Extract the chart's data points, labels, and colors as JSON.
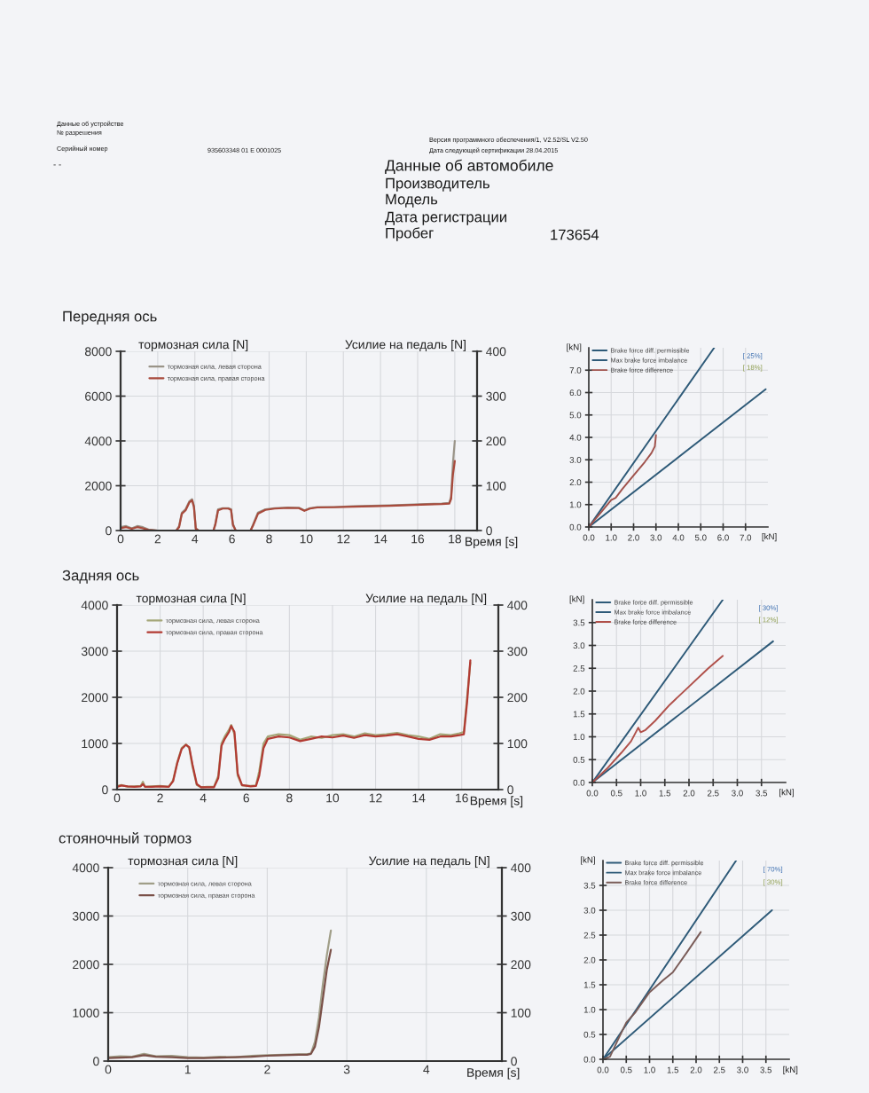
{
  "chart_data": [
    {
      "type": "other",
      "annotations": [
        "Данные об устройстве",
        "№ разрешения",
        "Серийный номер",
        "935603348 01 E 0001025",
        "Версия программного обеспечения/1, V2.52/SL V2.50",
        "Дата следующей сертификации 28.04.2015",
        "- -",
        "Данные об автомобиле",
        "Производитель",
        "Модель",
        "Дата регистрации",
        "Пробег",
        "173654"
      ]
    },
    {
      "type": "line",
      "title": "Передняя ось",
      "xlabel": "Время [s]",
      "ylabel": "тормозная сила [N]",
      "y2label": "Усилие на педаль [N]",
      "x": [
        0,
        0.3,
        0.6,
        0.9,
        1.2,
        1.5,
        2.0,
        2.5,
        3.0,
        3.15,
        3.3,
        3.5,
        3.7,
        3.85,
        3.95,
        4.05,
        4.2,
        4.6,
        5.0,
        5.1,
        5.25,
        5.5,
        5.8,
        5.95,
        6.05,
        6.2,
        6.6,
        7.0,
        7.15,
        7.4,
        7.8,
        8.3,
        9.0,
        9.6,
        9.9,
        10.2,
        10.6,
        11.5,
        12.5,
        13.5,
        14.5,
        15.5,
        16.5,
        17.3,
        17.7,
        17.8,
        17.9,
        18.0
      ],
      "series": [
        {
          "name": "тормозная сила, левая сторона",
          "color": "#9a9488",
          "values": [
            150,
            200,
            100,
            200,
            150,
            50,
            0,
            0,
            0,
            200,
            800,
            950,
            1300,
            1400,
            1100,
            100,
            0,
            0,
            0,
            300,
            950,
            1000,
            1000,
            950,
            300,
            0,
            0,
            0,
            300,
            800,
            950,
            1000,
            1030,
            1020,
            900,
            1000,
            1050,
            1050,
            1080,
            1100,
            1120,
            1150,
            1180,
            1200,
            1230,
            1500,
            3000,
            4000
          ]
        },
        {
          "name": "тормозная сила, правая сторона",
          "color": "#a84a3c",
          "values": [
            100,
            150,
            80,
            150,
            100,
            30,
            0,
            0,
            0,
            150,
            750,
            900,
            1250,
            1350,
            1050,
            80,
            0,
            0,
            0,
            250,
            900,
            980,
            980,
            920,
            250,
            0,
            0,
            0,
            250,
            750,
            920,
            980,
            1010,
            1000,
            880,
            980,
            1030,
            1040,
            1060,
            1080,
            1100,
            1130,
            1160,
            1180,
            1200,
            1400,
            2500,
            3100
          ]
        }
      ],
      "xlim": [
        0,
        19.2
      ],
      "xticks": [
        0,
        2,
        4,
        6,
        8,
        10,
        12,
        14,
        16,
        18
      ],
      "ylim": [
        0,
        8000
      ],
      "yticks": [
        0,
        2000,
        4000,
        6000,
        8000
      ],
      "y2lim": [
        0,
        400
      ],
      "y2ticks": [
        0,
        100,
        200,
        300,
        400
      ],
      "grid": true,
      "legend": "top left"
    },
    {
      "type": "line",
      "xlabel": "[kN]",
      "ylabel": "[kN]",
      "series": [
        {
          "name": "Brake force diff. permissible",
          "color": "#2e5a78",
          "x": [
            0,
            5.6
          ],
          "values": [
            0,
            8.0
          ]
        },
        {
          "name": "Max brake force imbalance",
          "color": "#2e5a78",
          "x": [
            0,
            7.9
          ],
          "values": [
            0,
            6.15
          ]
        },
        {
          "name": "Brake force difference",
          "color": "#a0524c",
          "x": [
            0,
            0.5,
            1.0,
            1.2,
            1.5,
            2.0,
            2.5,
            2.8,
            2.95,
            3.0
          ],
          "values": [
            0,
            0.6,
            1.2,
            1.3,
            1.7,
            2.3,
            2.9,
            3.3,
            3.6,
            4.1
          ]
        }
      ],
      "xlim": [
        0,
        8
      ],
      "xticks": [
        {
          "value": 0,
          "label": "0.0"
        },
        {
          "value": 1,
          "label": "1.0"
        },
        {
          "value": 2,
          "label": "2.0"
        },
        {
          "value": 3,
          "label": "3.0"
        },
        {
          "value": 4,
          "label": "4.0"
        },
        {
          "value": 5,
          "label": "5.0"
        },
        {
          "value": 6,
          "label": "6.0"
        },
        {
          "value": 7,
          "label": "7.0"
        }
      ],
      "ylim": [
        0,
        8
      ],
      "yticks": [
        {
          "value": 0,
          "label": "0.0"
        },
        {
          "value": 1,
          "label": "1.0"
        },
        {
          "value": 2,
          "label": "2.0"
        },
        {
          "value": 3,
          "label": "3.0"
        },
        {
          "value": 4,
          "label": "4.0"
        },
        {
          "value": 5,
          "label": "5.0"
        },
        {
          "value": 6,
          "label": "6.0"
        },
        {
          "value": 7,
          "label": "7.0"
        }
      ],
      "grid": true,
      "legend": "top left",
      "annotations": [
        "[ 25%]",
        "[ 18%]"
      ]
    },
    {
      "type": "line",
      "title": "Задняя ось",
      "xlabel": "Время [s]",
      "ylabel": "тормозная сила [N]",
      "y2label": "Усилие на педаль [N]",
      "x": [
        0,
        0.2,
        0.5,
        0.8,
        1.1,
        1.2,
        1.3,
        1.6,
        2.0,
        2.4,
        2.6,
        2.8,
        3.0,
        3.2,
        3.35,
        3.5,
        3.7,
        3.9,
        4.2,
        4.5,
        4.7,
        4.85,
        5.0,
        5.2,
        5.3,
        5.45,
        5.6,
        5.8,
        6.2,
        6.45,
        6.6,
        6.8,
        7.0,
        7.5,
        8.0,
        8.5,
        9.0,
        9.5,
        10.0,
        10.5,
        11.0,
        11.5,
        12.0,
        12.5,
        13.0,
        13.5,
        14.0,
        14.5,
        15.0,
        15.5,
        15.9,
        16.1,
        16.25,
        16.4
      ],
      "series": [
        {
          "name": "тормозная сила, левая сторона",
          "color": "#a4a678",
          "values": [
            80,
            100,
            60,
            70,
            80,
            170,
            60,
            70,
            80,
            60,
            200,
            600,
            900,
            980,
            900,
            500,
            100,
            50,
            60,
            60,
            300,
            1000,
            1150,
            1300,
            1400,
            1200,
            300,
            90,
            80,
            90,
            400,
            1000,
            1150,
            1200,
            1180,
            1080,
            1150,
            1120,
            1180,
            1200,
            1150,
            1220,
            1180,
            1200,
            1230,
            1180,
            1150,
            1100,
            1200,
            1180,
            1220,
            1250,
            2000,
            2750
          ]
        },
        {
          "name": "тормозная сила, правая сторона",
          "color": "#b23a32",
          "values": [
            60,
            90,
            70,
            60,
            70,
            120,
            60,
            60,
            70,
            60,
            180,
            580,
            880,
            970,
            920,
            550,
            120,
            50,
            50,
            50,
            250,
            950,
            1100,
            1250,
            1380,
            1250,
            350,
            100,
            70,
            80,
            300,
            900,
            1100,
            1150,
            1130,
            1050,
            1100,
            1150,
            1130,
            1170,
            1120,
            1180,
            1150,
            1170,
            1200,
            1150,
            1100,
            1080,
            1150,
            1150,
            1180,
            1200,
            1900,
            2800
          ]
        }
      ],
      "xlim": [
        0,
        17.7
      ],
      "xticks": [
        0,
        2,
        4,
        6,
        8,
        10,
        12,
        14,
        16
      ],
      "ylim": [
        0,
        4000
      ],
      "yticks": [
        0,
        1000,
        2000,
        3000,
        4000
      ],
      "y2lim": [
        0,
        400
      ],
      "y2ticks": [
        0,
        100,
        200,
        300,
        400
      ],
      "grid": true,
      "legend": "top left"
    },
    {
      "type": "line",
      "xlabel": "[kN]",
      "ylabel": "[kN]",
      "series": [
        {
          "name": "Brake force diff. permissible",
          "color": "#2e5a78",
          "x": [
            0,
            2.7
          ],
          "values": [
            0,
            4.0
          ]
        },
        {
          "name": "Max brake force imbalance",
          "color": "#2e5a78",
          "x": [
            0,
            3.74
          ],
          "values": [
            0,
            3.09
          ]
        },
        {
          "name": "Brake force difference",
          "color": "#b0504a",
          "x": [
            0,
            0.3,
            0.6,
            0.8,
            0.9,
            0.95,
            1.0,
            1.1,
            1.3,
            1.6,
            2.0,
            2.4,
            2.7
          ],
          "values": [
            0,
            0.3,
            0.65,
            0.9,
            1.1,
            1.2,
            1.1,
            1.15,
            1.35,
            1.7,
            2.1,
            2.5,
            2.77
          ]
        }
      ],
      "xlim": [
        0,
        4
      ],
      "xticks": [
        {
          "value": 0,
          "label": "0.0"
        },
        {
          "value": 0.5,
          "label": "0.5"
        },
        {
          "value": 1,
          "label": "1.0"
        },
        {
          "value": 1.5,
          "label": "1.5"
        },
        {
          "value": 2,
          "label": "2.0"
        },
        {
          "value": 2.5,
          "label": "2.5"
        },
        {
          "value": 3,
          "label": "3.0"
        },
        {
          "value": 3.5,
          "label": "3.5"
        }
      ],
      "ylim": [
        0,
        4
      ],
      "yticks": [
        {
          "value": 0,
          "label": "0.0"
        },
        {
          "value": 0.5,
          "label": "0.5"
        },
        {
          "value": 1,
          "label": "1.0"
        },
        {
          "value": 1.5,
          "label": "1.5"
        },
        {
          "value": 2,
          "label": "2.0"
        },
        {
          "value": 2.5,
          "label": "2.5"
        },
        {
          "value": 3,
          "label": "3.0"
        },
        {
          "value": 3.5,
          "label": "3.5"
        }
      ],
      "grid": true,
      "legend": "top left",
      "annotations": [
        "[ 30%]",
        "[ 12%]"
      ]
    },
    {
      "type": "line",
      "title": "стояночный тормоз",
      "xlabel": "Время [s]",
      "ylabel": "тормозная сила [N]",
      "y2label": "Усилие на педаль [N]",
      "x": [
        0,
        0.15,
        0.3,
        0.45,
        0.6,
        0.8,
        1.0,
        1.2,
        1.4,
        1.6,
        1.8,
        2.0,
        2.2,
        2.4,
        2.5,
        2.55,
        2.6,
        2.65,
        2.7,
        2.75,
        2.8
      ],
      "series": [
        {
          "name": "тормозная сила, левая сторона",
          "color": "#a09e88",
          "values": [
            80,
            100,
            90,
            150,
            100,
            110,
            80,
            70,
            90,
            80,
            110,
            120,
            130,
            140,
            140,
            160,
            400,
            900,
            1600,
            2200,
            2700
          ]
        },
        {
          "name": "тормозная сила, правая сторона",
          "color": "#7a5048",
          "values": [
            60,
            70,
            80,
            120,
            90,
            80,
            60,
            60,
            70,
            80,
            90,
            110,
            120,
            130,
            130,
            150,
            300,
            700,
            1300,
            1900,
            2300
          ]
        }
      ],
      "xlim": [
        0,
        4.95
      ],
      "xticks": [
        0,
        1,
        2,
        3,
        4
      ],
      "ylim": [
        0,
        4000
      ],
      "yticks": [
        0,
        1000,
        2000,
        3000,
        4000
      ],
      "y2lim": [
        0,
        400
      ],
      "y2ticks": [
        0,
        100,
        200,
        300,
        400
      ],
      "grid": true,
      "legend": "top left"
    },
    {
      "type": "line",
      "xlabel": "[kN]",
      "ylabel": "[kN]",
      "series": [
        {
          "name": "Brake force diff. permissible",
          "color": "#2e5a78",
          "x": [
            0,
            2.86
          ],
          "values": [
            0,
            4.0
          ]
        },
        {
          "name": "Max brake force imbalance",
          "color": "#2e5a78",
          "x": [
            0,
            3.63
          ],
          "values": [
            0,
            3.0
          ]
        },
        {
          "name": "Brake force difference",
          "color": "#7a5c58",
          "x": [
            0,
            0.15,
            0.3,
            0.5,
            0.7,
            1.0,
            1.3,
            1.5,
            1.8,
            2.1
          ],
          "values": [
            0,
            0.05,
            0.35,
            0.74,
            0.95,
            1.35,
            1.6,
            1.75,
            2.15,
            2.56
          ]
        }
      ],
      "xlim": [
        0,
        4
      ],
      "xticks": [
        {
          "value": 0,
          "label": "0.0"
        },
        {
          "value": 0.5,
          "label": "0.5"
        },
        {
          "value": 1,
          "label": "1.0"
        },
        {
          "value": 1.5,
          "label": "1.5"
        },
        {
          "value": 2,
          "label": "2.0"
        },
        {
          "value": 2.5,
          "label": "2.5"
        },
        {
          "value": 3,
          "label": "3.0"
        },
        {
          "value": 3.5,
          "label": "3.5"
        }
      ],
      "ylim": [
        0,
        4
      ],
      "yticks": [
        {
          "value": 0,
          "label": "0.0"
        },
        {
          "value": 0.5,
          "label": "0.5"
        },
        {
          "value": 1,
          "label": "1.0"
        },
        {
          "value": 1.5,
          "label": "1.5"
        },
        {
          "value": 2,
          "label": "2.0"
        },
        {
          "value": 2.5,
          "label": "2.5"
        },
        {
          "value": 3,
          "label": "3.0"
        },
        {
          "value": 3.5,
          "label": "3.5"
        }
      ],
      "grid": true,
      "legend": "top left",
      "annotations": [
        "[ 70%]",
        "[ 30%]"
      ]
    }
  ]
}
